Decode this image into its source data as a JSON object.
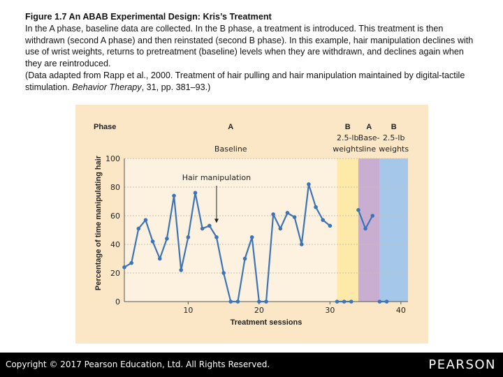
{
  "caption": {
    "title": "Figure 1.7   An ABAB Experimental Design: Kris’s Treatment",
    "description": "In the A phase, baseline data are collected. In the B phase, a treatment is introduced. This treatment is then withdrawn (second A phase) and then reinstated (second B phase). In this example, hair manipulation declines with use of wrist weights, returns to pretreatment (baseline) levels when they are withdrawn, and declines again when they are reintroduced.",
    "source_prefix": "(Data adapted from Rapp et al., 2000. Treatment of hair pulling and hair manipulation maintained by digital-tactile stimulation. ",
    "journal": "Behavior Therapy",
    "source_suffix": ", 31, pp. 381–93.)"
  },
  "chart_data": {
    "type": "line",
    "ylabel": "Percentage of time manipulating hair",
    "xlabel": "Treatment sessions",
    "phase_header": "Phase",
    "xlim": [
      1,
      41
    ],
    "ylim": [
      0,
      100
    ],
    "xticks": [
      10,
      20,
      30,
      40
    ],
    "yticks": [
      0,
      20,
      40,
      60,
      80,
      100
    ],
    "annotation": "Hair manipulation",
    "annotation_target": [
      14,
      53
    ],
    "phases": [
      {
        "letter": "A",
        "line1": "",
        "line2": "Baseline",
        "start": 1,
        "end": 31,
        "color": "#fbe7c6"
      },
      {
        "letter": "B",
        "line1": "2.5-lb",
        "line2": "weights",
        "start": 31,
        "end": 34,
        "color": "#fde9a8"
      },
      {
        "letter": "A",
        "line1": "Base-",
        "line2": "line",
        "start": 34,
        "end": 37,
        "color": "#c9aed2"
      },
      {
        "letter": "B",
        "line1": "2.5-lb",
        "line2": "weights",
        "start": 37,
        "end": 41,
        "color": "#a5c7ea"
      }
    ],
    "segments": [
      {
        "x": [
          1,
          2,
          3,
          4,
          5,
          6,
          7,
          8,
          9,
          10,
          11,
          12,
          13,
          14,
          15,
          16,
          17,
          18,
          19,
          20,
          21,
          22,
          23,
          24,
          25,
          26,
          27,
          28,
          29,
          30
        ],
        "y": [
          24,
          27,
          51,
          57,
          42,
          30,
          44,
          74,
          22,
          45,
          76,
          51,
          53,
          45,
          20,
          0,
          0,
          30,
          45,
          0,
          0,
          61,
          51,
          62,
          59,
          40,
          82,
          66,
          57,
          53
        ]
      },
      {
        "x": [
          31,
          32,
          33
        ],
        "y": [
          0,
          0,
          0
        ]
      },
      {
        "x": [
          34,
          35,
          36
        ],
        "y": [
          64,
          51,
          60
        ]
      },
      {
        "x": [
          37,
          38
        ],
        "y": [
          0,
          0
        ]
      }
    ]
  },
  "footer": {
    "copyright": "Copyright © 2017 Pearson Education, Ltd. All Rights Reserved.",
    "logo": "PEARSON"
  },
  "colors": {
    "line": "#3d74b7",
    "text": "#222222",
    "page_bg": "#fbe7c6",
    "plot_bg": "#fdf1df"
  }
}
